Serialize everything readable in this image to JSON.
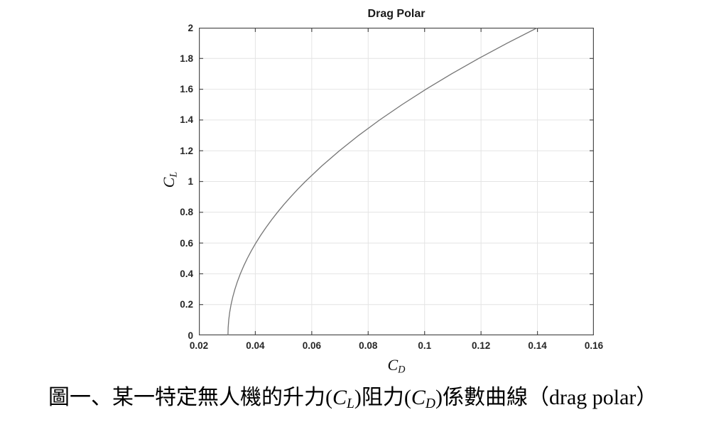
{
  "figure": {
    "caption": {
      "part1": "圖一、某一特定無人機的升力(",
      "cl": {
        "main": "C",
        "sub": "L"
      },
      "part2": ")阻力(",
      "cd": {
        "main": "C",
        "sub": "D"
      },
      "part3": ")係數曲線（drag polar）"
    }
  },
  "chart_data": {
    "type": "line",
    "title": "Drag Polar",
    "xlabel": {
      "main": "C",
      "sub": "D"
    },
    "ylabel": {
      "main": "C",
      "sub": "L"
    },
    "xlim": [
      0.02,
      0.16
    ],
    "ylim": [
      0,
      2
    ],
    "xticks": [
      "0.02",
      "0.04",
      "0.06",
      "0.08",
      "0.1",
      "0.12",
      "0.14",
      "0.16"
    ],
    "yticks": [
      "0",
      "0.2",
      "0.4",
      "0.6",
      "0.8",
      "1",
      "1.2",
      "1.4",
      "1.6",
      "1.8",
      "2"
    ],
    "grid": true,
    "legend": "none",
    "series": [
      {
        "name": "drag polar curve",
        "points_format": "[CD, CL]",
        "points": [
          [
            0.0303,
            0.0
          ],
          [
            0.030369,
            0.05
          ],
          [
            0.030574,
            0.1
          ],
          [
            0.030917,
            0.15
          ],
          [
            0.031397,
            0.2
          ],
          [
            0.032014,
            0.25
          ],
          [
            0.032768,
            0.3
          ],
          [
            0.03366,
            0.35
          ],
          [
            0.034688,
            0.4
          ],
          [
            0.035853,
            0.45
          ],
          [
            0.037156,
            0.5
          ],
          [
            0.038596,
            0.55
          ],
          [
            0.040173,
            0.6
          ],
          [
            0.041887,
            0.65
          ],
          [
            0.043738,
            0.7
          ],
          [
            0.045727,
            0.75
          ],
          [
            0.047852,
            0.8
          ],
          [
            0.050115,
            0.85
          ],
          [
            0.052514,
            0.9
          ],
          [
            0.055051,
            0.95
          ],
          [
            0.057725,
            1.0
          ],
          [
            0.063484,
            1.1
          ],
          [
            0.069792,
            1.2
          ],
          [
            0.076648,
            1.3
          ],
          [
            0.084053,
            1.4
          ],
          [
            0.092006,
            1.5
          ],
          [
            0.100508,
            1.6
          ],
          [
            0.109558,
            1.7
          ],
          [
            0.119157,
            1.8
          ],
          [
            0.129304,
            1.9
          ],
          [
            0.14,
            2.0
          ]
        ]
      }
    ],
    "colors": {
      "curve": "#757575",
      "grid": "#e4e4e4",
      "axis": "#4d4d4d",
      "title": "#1a1a1a",
      "tick_label": "#262626"
    }
  }
}
